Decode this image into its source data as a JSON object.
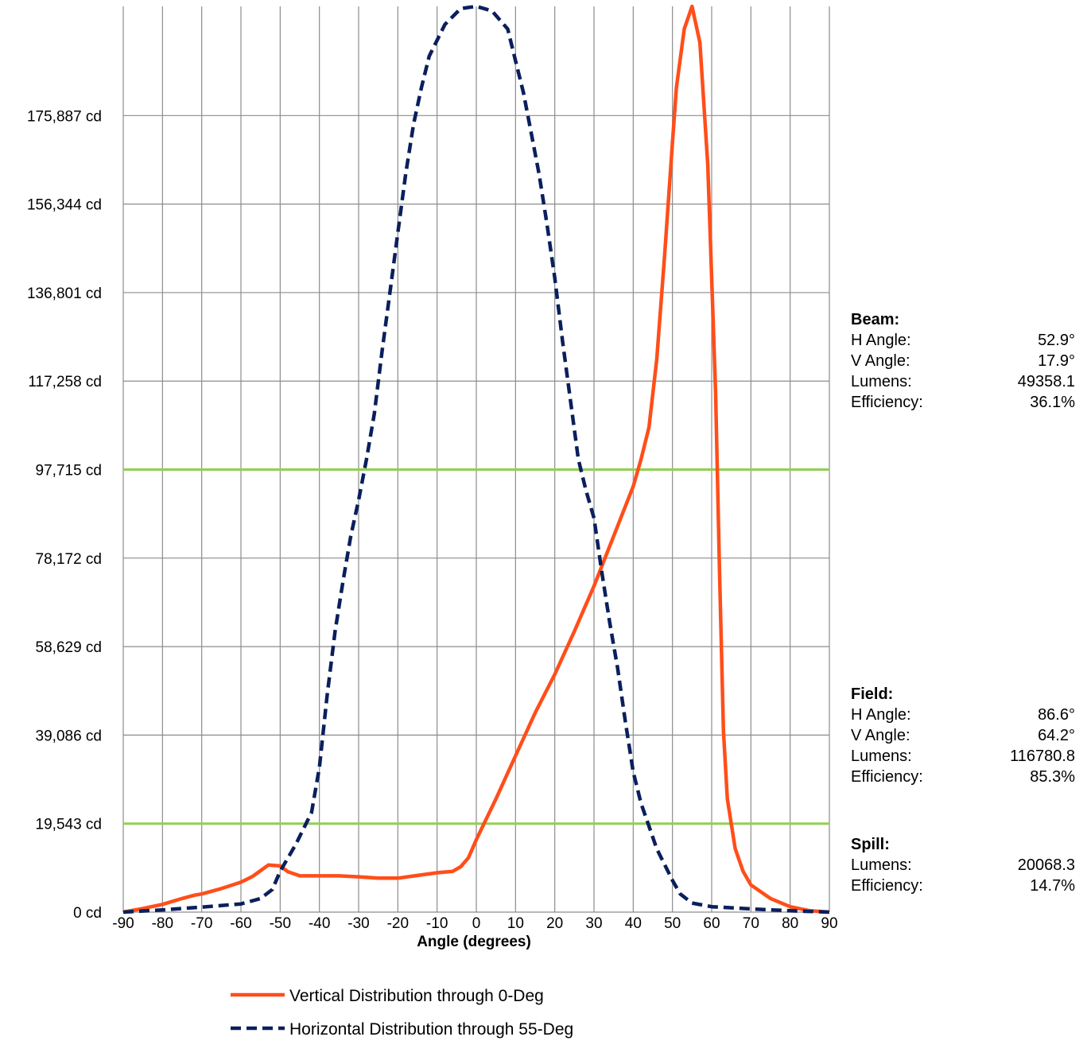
{
  "chart_data": {
    "type": "line",
    "xlabel": "Angle (degrees)",
    "ylabel": "",
    "xlim": [
      -90,
      90
    ],
    "ylim": [
      0,
      200000
    ],
    "x_ticks": [
      -90,
      -80,
      -70,
      -60,
      -50,
      -40,
      -30,
      -20,
      -10,
      0,
      10,
      20,
      30,
      40,
      50,
      60,
      70,
      80,
      90
    ],
    "y_ticks": [
      {
        "value": 0,
        "label": "0 cd"
      },
      {
        "value": 19543,
        "label": "19,543 cd"
      },
      {
        "value": 39086,
        "label": "39,086 cd"
      },
      {
        "value": 58629,
        "label": "58,629 cd"
      },
      {
        "value": 78172,
        "label": "78,172 cd"
      },
      {
        "value": 97715,
        "label": "97,715 cd"
      },
      {
        "value": 117258,
        "label": "117,258 cd"
      },
      {
        "value": 136801,
        "label": "136,801 cd"
      },
      {
        "value": 156344,
        "label": "156,344 cd"
      },
      {
        "value": 175887,
        "label": "175,887 cd"
      }
    ],
    "grid": true,
    "reference_lines": [
      {
        "y": 97715,
        "color": "#92d050"
      },
      {
        "y": 19543,
        "color": "#92d050"
      }
    ],
    "legend_position": "bottom",
    "series": [
      {
        "name": "Vertical Distribution through 0-Deg",
        "color": "#ff4e1a",
        "style": "solid",
        "points": [
          [
            -90,
            0
          ],
          [
            -85,
            800
          ],
          [
            -80,
            1700
          ],
          [
            -75,
            3000
          ],
          [
            -72,
            3700
          ],
          [
            -70,
            4000
          ],
          [
            -65,
            5200
          ],
          [
            -60,
            6600
          ],
          [
            -57,
            7900
          ],
          [
            -53,
            10400
          ],
          [
            -50,
            10200
          ],
          [
            -48,
            8900
          ],
          [
            -45,
            8000
          ],
          [
            -40,
            8000
          ],
          [
            -35,
            8000
          ],
          [
            -30,
            7800
          ],
          [
            -25,
            7500
          ],
          [
            -20,
            7500
          ],
          [
            -15,
            8100
          ],
          [
            -10,
            8700
          ],
          [
            -6,
            9000
          ],
          [
            -4,
            10000
          ],
          [
            -2,
            12000
          ],
          [
            0,
            16000
          ],
          [
            5,
            25000
          ],
          [
            10,
            34500
          ],
          [
            15,
            44000
          ],
          [
            20,
            52500
          ],
          [
            25,
            62000
          ],
          [
            30,
            72000
          ],
          [
            35,
            83000
          ],
          [
            40,
            94000
          ],
          [
            42,
            100000
          ],
          [
            44,
            107000
          ],
          [
            46,
            122000
          ],
          [
            48,
            145000
          ],
          [
            50,
            170000
          ],
          [
            51,
            182000
          ],
          [
            53,
            195000
          ],
          [
            55,
            200000
          ],
          [
            57,
            192000
          ],
          [
            59,
            165000
          ],
          [
            61,
            115000
          ],
          [
            62,
            75000
          ],
          [
            63,
            40000
          ],
          [
            64,
            25000
          ],
          [
            66,
            14000
          ],
          [
            68,
            9000
          ],
          [
            70,
            6000
          ],
          [
            75,
            3000
          ],
          [
            80,
            1200
          ],
          [
            85,
            300
          ],
          [
            90,
            0
          ]
        ]
      },
      {
        "name": "Horizontal Distribution through 55-Deg",
        "color": "#0a1f5c",
        "style": "dashed",
        "points": [
          [
            -90,
            0
          ],
          [
            -80,
            500
          ],
          [
            -70,
            1100
          ],
          [
            -60,
            1800
          ],
          [
            -55,
            3000
          ],
          [
            -52,
            5000
          ],
          [
            -50,
            9000
          ],
          [
            -46,
            15000
          ],
          [
            -42,
            22000
          ],
          [
            -40,
            32000
          ],
          [
            -38,
            48000
          ],
          [
            -36,
            62000
          ],
          [
            -34,
            73000
          ],
          [
            -32,
            83000
          ],
          [
            -30,
            91000
          ],
          [
            -28,
            100000
          ],
          [
            -26,
            110000
          ],
          [
            -24,
            124000
          ],
          [
            -22,
            137000
          ],
          [
            -20,
            150000
          ],
          [
            -18,
            163000
          ],
          [
            -16,
            174000
          ],
          [
            -14,
            182000
          ],
          [
            -12,
            189000
          ],
          [
            -8,
            196000
          ],
          [
            -4,
            199500
          ],
          [
            0,
            200000
          ],
          [
            4,
            199000
          ],
          [
            8,
            195000
          ],
          [
            10,
            188000
          ],
          [
            12,
            181000
          ],
          [
            14,
            172000
          ],
          [
            16,
            163000
          ],
          [
            18,
            152000
          ],
          [
            20,
            140000
          ],
          [
            22,
            126000
          ],
          [
            24,
            113000
          ],
          [
            26,
            100000
          ],
          [
            28,
            93000
          ],
          [
            30,
            87000
          ],
          [
            32,
            75000
          ],
          [
            34,
            64000
          ],
          [
            36,
            54000
          ],
          [
            38,
            42000
          ],
          [
            40,
            31000
          ],
          [
            42,
            24000
          ],
          [
            44,
            19000
          ],
          [
            46,
            14000
          ],
          [
            50,
            7000
          ],
          [
            52,
            4000
          ],
          [
            55,
            2000
          ],
          [
            60,
            1200
          ],
          [
            70,
            700
          ],
          [
            80,
            300
          ],
          [
            90,
            0
          ]
        ]
      }
    ]
  },
  "stats": {
    "beam": {
      "heading": "Beam:",
      "h_angle_label": "H Angle:",
      "h_angle": "52.9°",
      "v_angle_label": "V Angle:",
      "v_angle": "17.9°",
      "lumens_label": "Lumens:",
      "lumens": "49358.1",
      "efficiency_label": "Efficiency:",
      "efficiency": "36.1%"
    },
    "field": {
      "heading": "Field:",
      "h_angle_label": "H Angle:",
      "h_angle": "86.6°",
      "v_angle_label": "V Angle:",
      "v_angle": "64.2°",
      "lumens_label": "Lumens:",
      "lumens": "116780.8",
      "efficiency_label": "Efficiency:",
      "efficiency": "85.3%"
    },
    "spill": {
      "heading": "Spill:",
      "lumens_label": "Lumens:",
      "lumens": "20068.3",
      "efficiency_label": "Efficiency:",
      "efficiency": "14.7%"
    }
  }
}
